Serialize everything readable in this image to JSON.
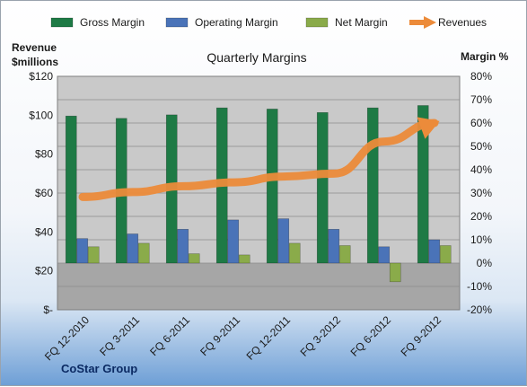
{
  "chart_data": {
    "type": "bar",
    "title": "Quarterly Margins",
    "footer": "CoStar Group",
    "left_axis": {
      "title_line1": "Revenue",
      "title_line2": "$millions",
      "range": [
        0,
        120
      ],
      "ticks": [
        "$-",
        "$20",
        "$40",
        "$60",
        "$80",
        "$100",
        "$120"
      ]
    },
    "right_axis": {
      "title": "Margin %",
      "range": [
        -20,
        80
      ],
      "ticks": [
        "-20%",
        "-10%",
        "0%",
        "10%",
        "20%",
        "30%",
        "40%",
        "50%",
        "60%",
        "70%",
        "80%"
      ]
    },
    "categories": [
      "FQ 12-2010",
      "FQ 3-2011",
      "FQ 6-2011",
      "FQ 9-2011",
      "FQ 12-2011",
      "FQ 3-2012",
      "FQ 6-2012",
      "FQ 9-2012"
    ],
    "series": [
      {
        "name": "Gross Margin",
        "axis": "right",
        "kind": "bar",
        "color": "#1e7a45",
        "values": [
          63,
          62,
          63.5,
          66.5,
          66,
          64.5,
          66.5,
          67.5
        ]
      },
      {
        "name": "Operating Margin",
        "axis": "right",
        "kind": "bar",
        "color": "#4a73b8",
        "values": [
          10.5,
          12.5,
          14.5,
          18.5,
          19,
          14.5,
          7,
          10
        ]
      },
      {
        "name": "Net Margin",
        "axis": "right",
        "kind": "bar",
        "color": "#8aab4a",
        "values": [
          7,
          8.5,
          4,
          3.5,
          8.5,
          7.5,
          -8,
          7.5
        ]
      },
      {
        "name": "Revenues",
        "axis": "left",
        "kind": "line",
        "color": "#ec8b3a",
        "values": [
          58,
          60.5,
          63.5,
          65.5,
          68.5,
          70,
          86.5,
          96
        ]
      }
    ],
    "legend_position": "top",
    "grid": true
  }
}
